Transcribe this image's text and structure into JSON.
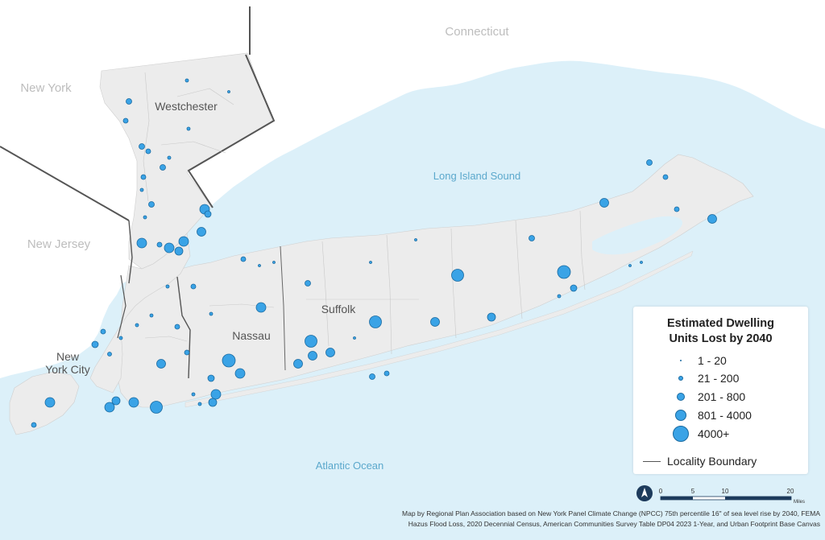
{
  "labels": {
    "connecticut": "Connecticut",
    "new_york": "New York",
    "westchester": "Westchester",
    "new_jersey": "New Jersey",
    "long_island_sound": "Long Island Sound",
    "suffolk": "Suffolk",
    "nassau": "Nassau",
    "nyc_line1": "New",
    "nyc_line2": "York City",
    "atlantic": "Atlantic Ocean"
  },
  "legend": {
    "title_line1": "Estimated Dwelling",
    "title_line2": "Units Lost by 2040",
    "classes": [
      "1 - 20",
      "21 - 200",
      "201 - 800",
      "801 - 4000",
      "4000+"
    ],
    "boundary_label": "Locality Boundary"
  },
  "scale_bar": {
    "ticks": [
      "0",
      "5",
      "10",
      "20"
    ],
    "unit": "Miles"
  },
  "credit": {
    "line1": "Map by Regional Plan Association based on New York Panel Climate Change (NPCC) 75th percentile 16\" of sea level rise by 2040, FEMA",
    "line2": "Hazus Flood Loss, 2020 Decennial Census, American Communities Survey Table DP04 2023 1-Year, and Urban Footprint Base Canvas"
  },
  "colors": {
    "water": "#d9eef8",
    "land": "#ececec",
    "dot_fill": "#3aa3e6",
    "dot_stroke": "#1a6aa0",
    "state_border": "#555555"
  },
  "icons": {
    "north_arrow": "north-arrow-icon"
  }
}
